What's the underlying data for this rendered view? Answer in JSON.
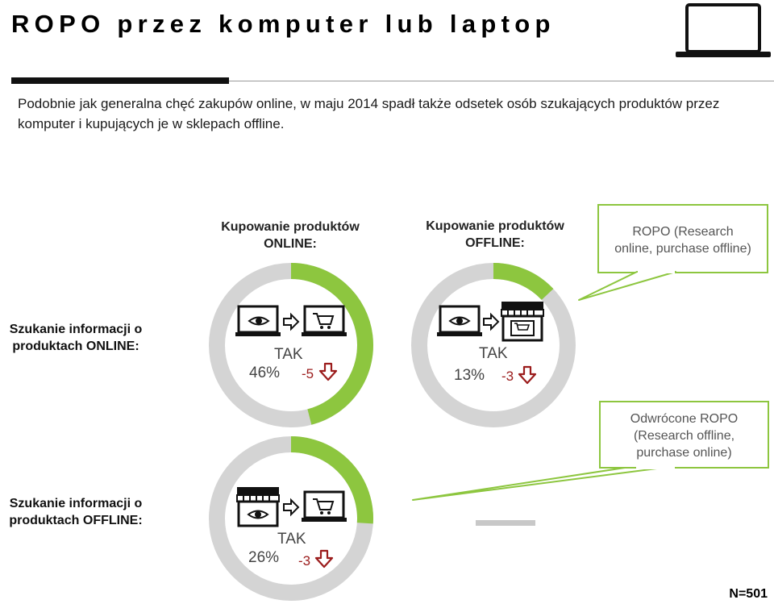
{
  "title": "ROPO przez komputer lub laptop",
  "subtitle": "Podobnie jak generalna chęć zakupów online, w maju 2014 spadł także odsetek osób szukających produktów przez komputer i kupujących je w sklepach offline.",
  "columns": {
    "online_line1": "Kupowanie produktów",
    "online_line2": "ONLINE:",
    "offline_line1": "Kupowanie produktów",
    "offline_line2": "OFFLINE:"
  },
  "rows": {
    "online_line1": "Szukanie informacji o",
    "online_line2": "produktach ONLINE:",
    "offline_line1": "Szukanie informacji o",
    "offline_line2": "produktach OFFLINE:"
  },
  "callouts": {
    "ropo_line1": "ROPO (Research",
    "ropo_line2": "online, purchase offline)",
    "reverse_line1": "Odwrócone ROPO",
    "reverse_line2": "(Research offline,",
    "reverse_line3": "purchase online)"
  },
  "sample": "N=501",
  "colors": {
    "accent_green": "#8dc63f",
    "ring_gray": "#d4d4d4",
    "arrow_red": "#9b1c1c",
    "text_dark": "#111111"
  },
  "icons": [
    "laptop-icon",
    "eye-icon",
    "arrow-right-icon",
    "cart-icon",
    "shop-icon",
    "arrow-down-icon"
  ],
  "chart_data": {
    "type": "pie",
    "charts": [
      {
        "id": "online-online",
        "label": "TAK",
        "value": 46,
        "value_label": "46%",
        "change": -5,
        "change_label": "-5"
      },
      {
        "id": "online-offline",
        "label": "TAK",
        "value": 13,
        "value_label": "13%",
        "change": -3,
        "change_label": "-3"
      },
      {
        "id": "offline-online",
        "label": "TAK",
        "value": 26,
        "value_label": "26%",
        "change": -3,
        "change_label": "-3"
      }
    ]
  }
}
